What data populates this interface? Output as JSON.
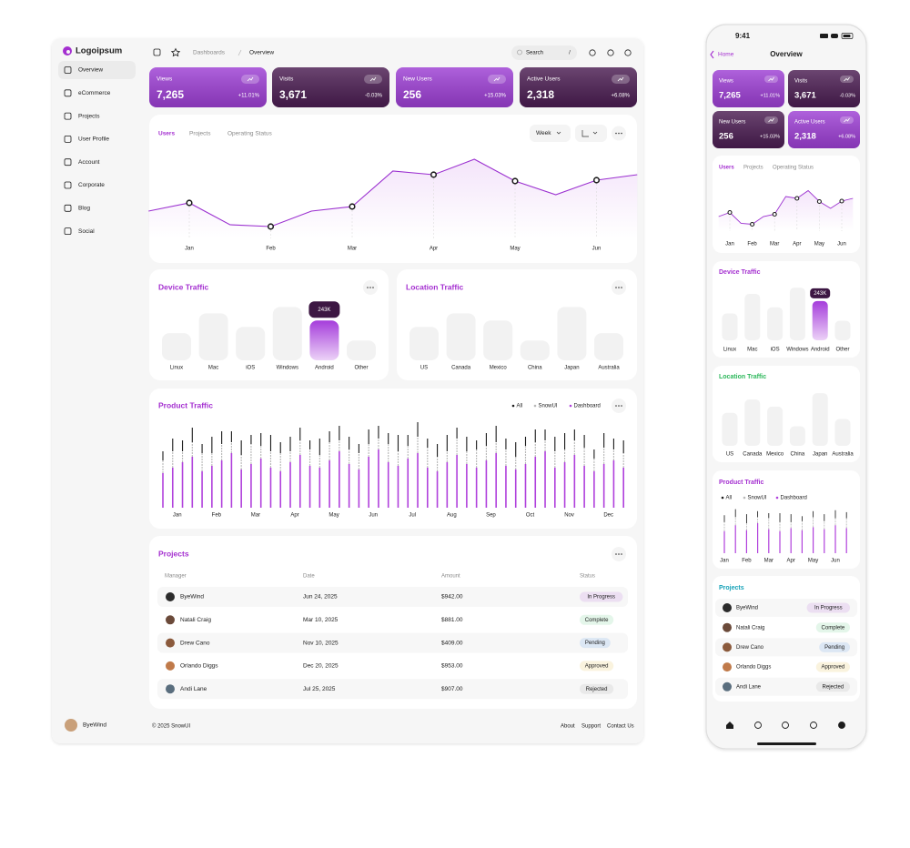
{
  "sidebar": {
    "logo": "Logoipsum",
    "nav": [
      "Overview",
      "eCommerce",
      "Projects",
      "User Profile",
      "Account",
      "Corporate",
      "Blog",
      "Social"
    ],
    "user": "ByeWind"
  },
  "header": {
    "breadcrumb": [
      "Dashboards",
      "Overview"
    ],
    "search": "Search",
    "search_shortcut": "/"
  },
  "kpis": [
    {
      "label": "Views",
      "value": "7,265",
      "change": "+11.01%",
      "color": "#9d3fd4",
      "mobile_color": "#9d3fd4"
    },
    {
      "label": "Visits",
      "value": "3,671",
      "change": "-0.03%",
      "color": "#4b1d52",
      "mobile_color": "#4b1d52"
    },
    {
      "label": "New Users",
      "value": "256",
      "change": "+15.03%",
      "color": "#9d3fd4",
      "mobile_color": "#4b1d52"
    },
    {
      "label": "Active Users",
      "value": "2,318",
      "change": "+6.08%",
      "color": "#4b1d52",
      "mobile_color": "#9d3fd4"
    }
  ],
  "users_chart": {
    "type": "line",
    "tabs": [
      "Users",
      "Projects",
      "Operating Status"
    ],
    "period": "Week",
    "categories": [
      null,
      "Jan",
      null,
      "Feb",
      null,
      "Mar",
      null,
      "Apr",
      null,
      "May",
      null,
      "Jun",
      null
    ],
    "values": [
      28,
      37,
      13,
      11,
      28,
      33,
      72,
      68,
      85,
      61,
      46,
      62,
      68
    ],
    "ylim": [
      0,
      100
    ],
    "color": "#9b30d0"
  },
  "device_traffic": {
    "type": "bar",
    "title": "Device Traffic",
    "categories": [
      "Linux",
      "Mac",
      "iOS",
      "Windows",
      "Android",
      "Other"
    ],
    "values": [
      166,
      287,
      204,
      326,
      243,
      121
    ],
    "value_labels": [
      null,
      null,
      null,
      null,
      "243K",
      null
    ],
    "ylim": [
      0,
      400
    ]
  },
  "location_traffic": {
    "type": "bar",
    "title": "Location Traffic",
    "categories": [
      "US",
      "Canada",
      "Mexico",
      "China",
      "Japan",
      "Australia"
    ],
    "values": [
      204,
      287,
      243,
      121,
      326,
      166
    ],
    "ylim": [
      0,
      400
    ]
  },
  "product_traffic": {
    "type": "bar",
    "title": "Product Traffic",
    "categories": [
      null,
      "Jan",
      null,
      null,
      null,
      "Feb",
      null,
      null,
      null,
      "Mar",
      null,
      null,
      null,
      "Apr",
      null,
      null,
      null,
      "May",
      null,
      null,
      null,
      "Jun",
      null,
      null,
      null,
      "Jul",
      null,
      null,
      null,
      "Aug",
      null,
      null,
      null,
      "Sep",
      null,
      null,
      null,
      "Oct",
      null,
      null,
      null,
      "Nov",
      null,
      null,
      null,
      "Dec",
      null,
      null
    ],
    "series": [
      {
        "name": "All",
        "color": "#1c1c1c",
        "values": [
          10,
          14,
          12,
          16,
          10,
          18,
          14,
          12,
          16,
          10,
          14,
          18,
          12,
          16,
          14,
          10,
          18,
          12,
          16,
          14,
          10,
          16,
          14,
          12,
          18,
          12,
          16,
          10,
          14,
          18,
          12,
          16,
          10,
          14,
          18,
          12,
          16,
          10,
          14,
          12,
          16,
          18,
          12,
          14,
          10,
          16,
          12,
          14
        ]
      },
      {
        "name": "SnowUI",
        "color": "#b8b8b8",
        "values": [
          14,
          18,
          12,
          16,
          20,
          14,
          18,
          12,
          16,
          22,
          14,
          18,
          20,
          12,
          16,
          18,
          14,
          20,
          12,
          16,
          18,
          14,
          12,
          20,
          16,
          14,
          18,
          22,
          16,
          12,
          18,
          14,
          20,
          16,
          12,
          18,
          14,
          20,
          16,
          12,
          18,
          14,
          16,
          20,
          14,
          18,
          12,
          16
        ]
      },
      {
        "name": "Dashboard",
        "color": "#b040dc",
        "values": [
          38,
          44,
          50,
          56,
          40,
          46,
          52,
          60,
          42,
          48,
          54,
          44,
          40,
          50,
          58,
          46,
          44,
          52,
          62,
          48,
          42,
          56,
          64,
          50,
          46,
          54,
          60,
          44,
          40,
          50,
          58,
          48,
          44,
          52,
          60,
          46,
          42,
          48,
          56,
          62,
          44,
          50,
          58,
          46,
          40,
          48,
          52,
          44
        ]
      }
    ],
    "ylim": [
      0,
      100
    ]
  },
  "projects": {
    "title": "Projects",
    "columns": [
      "Manager",
      "Date",
      "Amount",
      "Status"
    ],
    "rows": [
      {
        "manager": "ByeWind",
        "date": "Jun 24, 2025",
        "amount": "$942.00",
        "status": "In Progress",
        "color": "#a23fd0"
      },
      {
        "manager": "Natali Craig",
        "date": "Mar 10, 2025",
        "amount": "$881.00",
        "status": "Complete",
        "color": "#2eb85c"
      },
      {
        "manager": "Drew Cano",
        "date": "Nov 10, 2025",
        "amount": "$409.00",
        "status": "Pending",
        "color": "#2a7de1"
      },
      {
        "manager": "Orlando Diggs",
        "date": "Dec 20, 2025",
        "amount": "$953.00",
        "status": "Approved",
        "color": "#d9a400"
      },
      {
        "manager": "Andi Lane",
        "date": "Jul 25, 2025",
        "amount": "$907.00",
        "status": "Rejected",
        "color": "#8a8a8a"
      }
    ]
  },
  "footer": {
    "copyright": "© 2025 SnowUI",
    "links": [
      "About",
      "Support",
      "Contact Us"
    ]
  },
  "mobile": {
    "time": "9:41",
    "back": "Home",
    "title": "Overview"
  }
}
